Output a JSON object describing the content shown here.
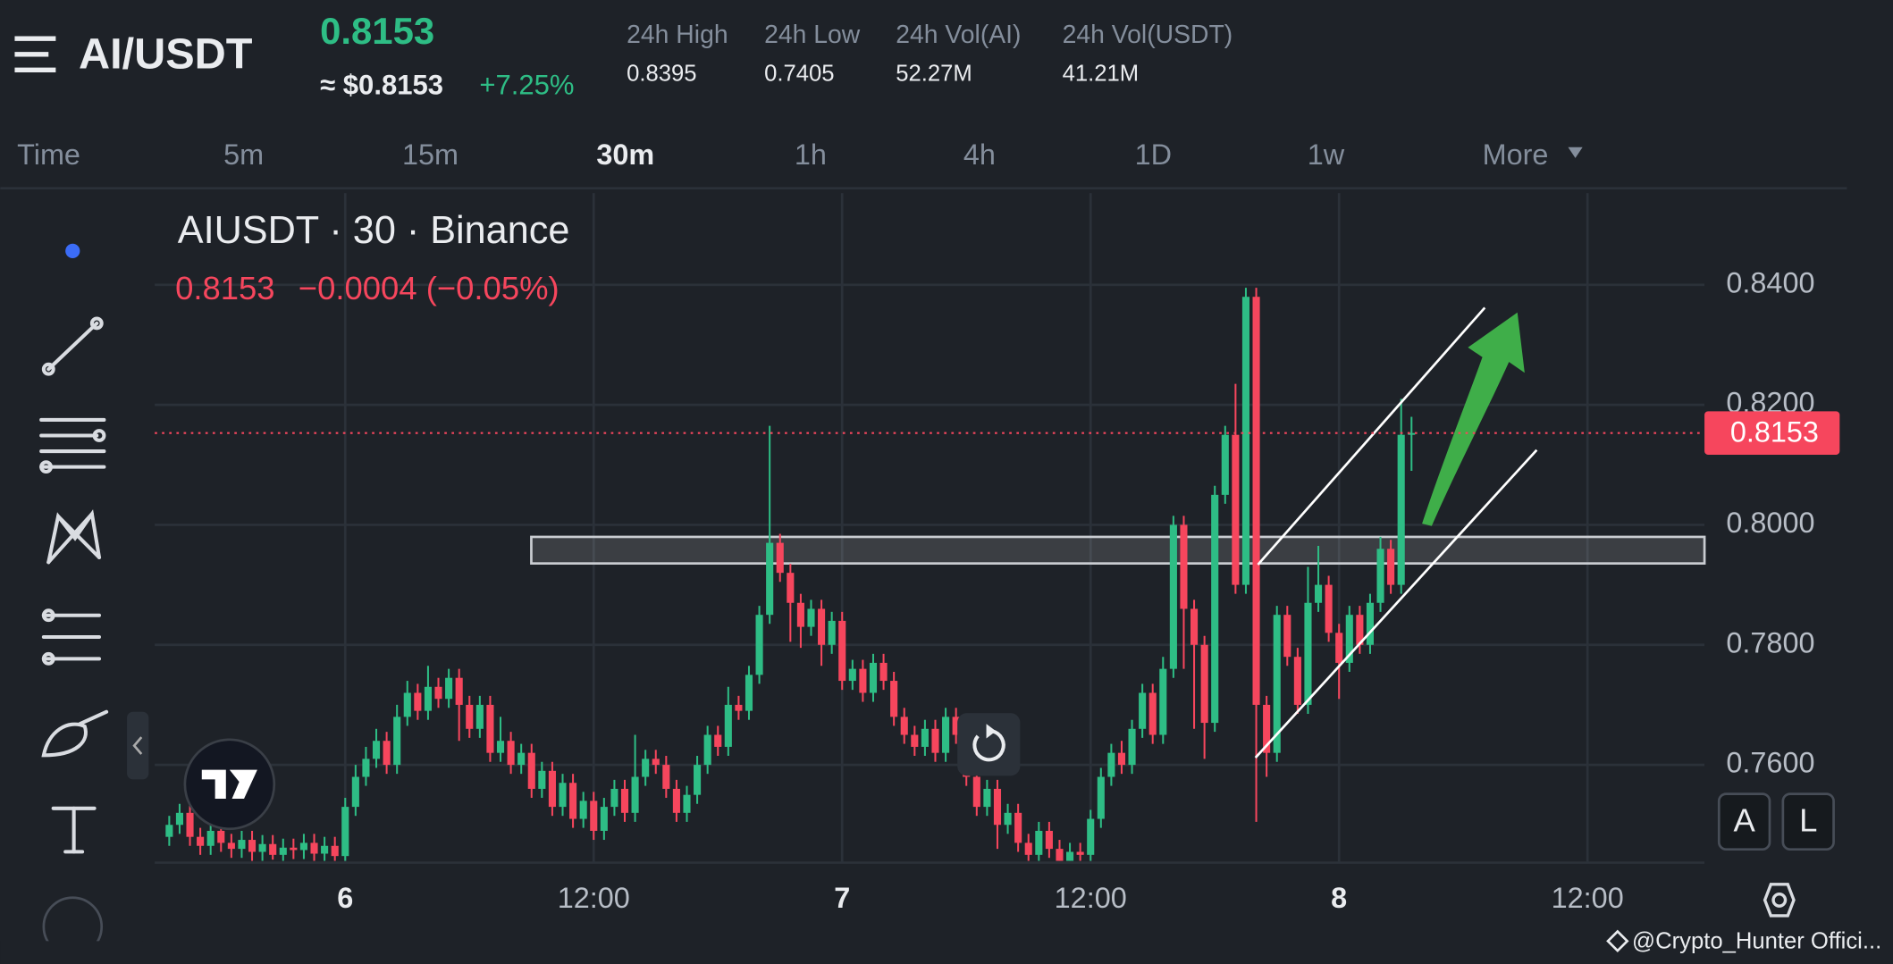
{
  "header": {
    "pair": "AI/USDT",
    "price": "0.8153",
    "usd_price": "≈ $0.8153",
    "change": "+7.25%",
    "stats": [
      {
        "label": "24h High",
        "value": "0.8395"
      },
      {
        "label": "24h Low",
        "value": "0.7405"
      },
      {
        "label": "24h Vol(AI)",
        "value": "52.27M"
      },
      {
        "label": "24h Vol(USDT)",
        "value": "41.21M"
      }
    ]
  },
  "intervals": [
    "Time",
    "5m",
    "15m",
    "30m",
    "1h",
    "4h",
    "1D",
    "1w",
    "More"
  ],
  "buttons": [
    "A",
    "L"
  ],
  "watermark": "@Crypto_Hunter Offici...",
  "chart_data": {
    "type": "candlestick",
    "title": "AIUSDT · 30 · Binance",
    "legend_price": "0.8153",
    "legend_change": "−0.0004 (−0.05%)",
    "up_color": "#2ebd85",
    "down_color": "#f6465d",
    "grid": true,
    "last_price": 0.8153,
    "ylim": [
      0.7437,
      0.8563
    ],
    "yticks": [
      {
        "value": 0.76,
        "label": "0.7600"
      },
      {
        "value": 0.78,
        "label": "0.7800"
      },
      {
        "value": 0.8,
        "label": "0.8000"
      },
      {
        "value": 0.82,
        "label": "0.8200"
      },
      {
        "value": 0.84,
        "label": "0.8400"
      }
    ],
    "xlim": [
      -1.17,
      148.3
    ],
    "xticks": [
      {
        "value": 17,
        "label": "6"
      },
      {
        "value": 41,
        "label": "12:00"
      },
      {
        "value": 65,
        "label": "7"
      },
      {
        "value": 89,
        "label": "12:00"
      },
      {
        "value": 113,
        "label": "8"
      },
      {
        "value": 137,
        "label": "12:00"
      }
    ],
    "open": [
      0.748,
      0.75,
      0.752,
      0.748,
      0.7465,
      0.749,
      0.747,
      0.746,
      0.7475,
      0.7455,
      0.7468,
      0.745,
      0.7462,
      0.7458,
      0.747,
      0.7452,
      0.7465,
      0.7448,
      0.753,
      0.758,
      0.761,
      0.764,
      0.76,
      0.768,
      0.772,
      0.769,
      0.773,
      0.771,
      0.7745,
      0.77,
      0.766,
      0.77,
      0.762,
      0.764,
      0.76,
      0.762,
      0.756,
      0.759,
      0.753,
      0.757,
      0.751,
      0.754,
      0.749,
      0.753,
      0.756,
      0.752,
      0.758,
      0.761,
      0.76,
      0.756,
      0.752,
      0.755,
      0.76,
      0.765,
      0.763,
      0.77,
      0.769,
      0.775,
      0.785,
      0.797,
      0.792,
      0.787,
      0.783,
      0.786,
      0.78,
      0.784,
      0.774,
      0.776,
      0.772,
      0.777,
      0.774,
      0.768,
      0.765,
      0.763,
      0.766,
      0.762,
      0.768,
      0.765,
      0.758,
      0.753,
      0.756,
      0.75,
      0.752,
      0.747,
      0.745,
      0.749,
      0.746,
      0.744,
      0.7455,
      0.745,
      0.751,
      0.758,
      0.762,
      0.76,
      0.766,
      0.772,
      0.765,
      0.776,
      0.8,
      0.786,
      0.78,
      0.767,
      0.805,
      0.815,
      0.79,
      0.838,
      0.77,
      0.762,
      0.785,
      0.778,
      0.77,
      0.787,
      0.79,
      0.782,
      0.777,
      0.785,
      0.78,
      0.787,
      0.796,
      0.79,
      0.815
    ],
    "high": [
      0.7515,
      0.7535,
      0.7535,
      0.7495,
      0.7505,
      0.7505,
      0.7485,
      0.749,
      0.749,
      0.7483,
      0.7483,
      0.7477,
      0.7477,
      0.7485,
      0.7485,
      0.748,
      0.748,
      0.7545,
      0.76,
      0.763,
      0.766,
      0.7655,
      0.77,
      0.774,
      0.7735,
      0.7765,
      0.7745,
      0.776,
      0.776,
      0.7715,
      0.7715,
      0.7715,
      0.768,
      0.7655,
      0.7635,
      0.7635,
      0.7605,
      0.7605,
      0.7585,
      0.7585,
      0.7555,
      0.7555,
      0.7545,
      0.7575,
      0.7575,
      0.765,
      0.7625,
      0.7625,
      0.7615,
      0.7575,
      0.7565,
      0.7615,
      0.7665,
      0.7665,
      0.773,
      0.7715,
      0.7765,
      0.7865,
      0.8165,
      0.7985,
      0.7935,
      0.7885,
      0.7875,
      0.7875,
      0.7855,
      0.7855,
      0.7775,
      0.7775,
      0.7785,
      0.7785,
      0.7755,
      0.7695,
      0.7665,
      0.7675,
      0.7675,
      0.7695,
      0.7695,
      0.7665,
      0.7595,
      0.7575,
      0.7575,
      0.7535,
      0.7535,
      0.7485,
      0.7505,
      0.7505,
      0.7475,
      0.747,
      0.747,
      0.7525,
      0.7595,
      0.7635,
      0.764,
      0.7675,
      0.7735,
      0.7735,
      0.778,
      0.8015,
      0.8015,
      0.7875,
      0.7815,
      0.8065,
      0.8165,
      0.8235,
      0.8395,
      0.8395,
      0.7715,
      0.7865,
      0.7865,
      0.7795,
      0.793,
      0.7965,
      0.7915,
      0.7835,
      0.7865,
      0.7865,
      0.7885,
      0.798,
      0.7975,
      0.821,
      0.818
    ],
    "low": [
      0.7465,
      0.7485,
      0.7465,
      0.745,
      0.745,
      0.7455,
      0.7445,
      0.7445,
      0.744,
      0.744,
      0.7442,
      0.744,
      0.7443,
      0.7443,
      0.744,
      0.744,
      0.744,
      0.744,
      0.7515,
      0.7565,
      0.7595,
      0.7585,
      0.7585,
      0.7665,
      0.7675,
      0.7675,
      0.7695,
      0.7695,
      0.764,
      0.7645,
      0.7645,
      0.7605,
      0.7605,
      0.7585,
      0.7585,
      0.7545,
      0.7545,
      0.7515,
      0.7515,
      0.7495,
      0.7495,
      0.7475,
      0.7475,
      0.7515,
      0.7505,
      0.7505,
      0.7565,
      0.7585,
      0.7545,
      0.7505,
      0.7505,
      0.7535,
      0.7585,
      0.7615,
      0.7615,
      0.7675,
      0.7675,
      0.7735,
      0.7835,
      0.7905,
      0.7805,
      0.7795,
      0.7815,
      0.7765,
      0.7785,
      0.7725,
      0.7725,
      0.7705,
      0.7705,
      0.7725,
      0.7665,
      0.7635,
      0.7615,
      0.7615,
      0.7605,
      0.7605,
      0.7635,
      0.7565,
      0.7515,
      0.7515,
      0.746,
      0.7485,
      0.7455,
      0.744,
      0.744,
      0.7445,
      0.744,
      0.744,
      0.744,
      0.744,
      0.7495,
      0.7565,
      0.7585,
      0.7585,
      0.7645,
      0.7635,
      0.7635,
      0.7745,
      0.776,
      0.766,
      0.761,
      0.7655,
      0.8035,
      0.7885,
      0.7885,
      0.7505,
      0.758,
      0.7605,
      0.7765,
      0.7685,
      0.7685,
      0.7855,
      0.7805,
      0.771,
      0.7755,
      0.7785,
      0.7785,
      0.7855,
      0.7885,
      0.7885,
      0.809
    ],
    "close": [
      0.75,
      0.752,
      0.748,
      0.7465,
      0.749,
      0.747,
      0.746,
      0.7475,
      0.7455,
      0.7468,
      0.745,
      0.7462,
      0.7458,
      0.747,
      0.7452,
      0.7465,
      0.7448,
      0.753,
      0.758,
      0.761,
      0.764,
      0.76,
      0.768,
      0.772,
      0.769,
      0.773,
      0.771,
      0.7745,
      0.77,
      0.766,
      0.77,
      0.762,
      0.764,
      0.76,
      0.762,
      0.756,
      0.759,
      0.753,
      0.757,
      0.751,
      0.754,
      0.749,
      0.753,
      0.756,
      0.752,
      0.758,
      0.761,
      0.76,
      0.756,
      0.752,
      0.755,
      0.76,
      0.765,
      0.763,
      0.77,
      0.769,
      0.775,
      0.785,
      0.797,
      0.792,
      0.787,
      0.783,
      0.786,
      0.78,
      0.784,
      0.774,
      0.776,
      0.772,
      0.777,
      0.774,
      0.768,
      0.765,
      0.763,
      0.766,
      0.762,
      0.768,
      0.765,
      0.758,
      0.753,
      0.756,
      0.75,
      0.752,
      0.747,
      0.745,
      0.749,
      0.746,
      0.744,
      0.7455,
      0.745,
      0.751,
      0.758,
      0.762,
      0.76,
      0.766,
      0.772,
      0.765,
      0.776,
      0.8,
      0.786,
      0.78,
      0.767,
      0.805,
      0.815,
      0.79,
      0.838,
      0.77,
      0.762,
      0.785,
      0.778,
      0.77,
      0.787,
      0.79,
      0.782,
      0.777,
      0.785,
      0.78,
      0.787,
      0.796,
      0.79,
      0.815,
      0.8153
    ]
  }
}
